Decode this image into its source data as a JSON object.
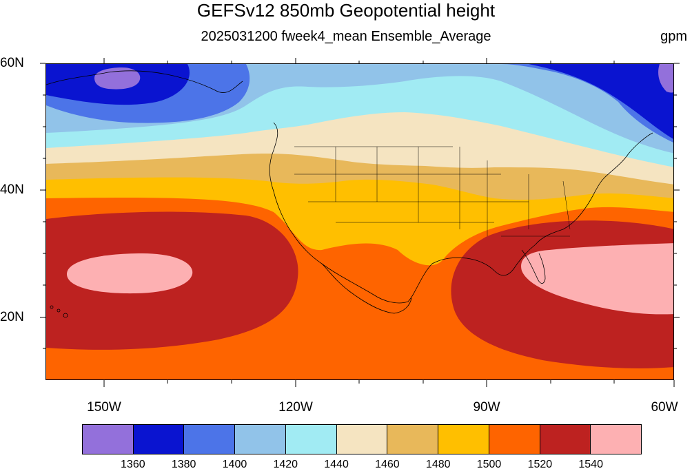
{
  "title": "GEFSv12 850mb Geopotential height",
  "subtitle": "2025031200 fweek4_mean Ensemble_Average",
  "units": "gpm",
  "map": {
    "projection": "cylindrical equidistant",
    "lon_range": [
      "160W",
      "60W"
    ],
    "lat_range": [
      "10N",
      "60N"
    ],
    "lat_labels": [
      "60N",
      "40N",
      "20N"
    ],
    "lon_labels": [
      "150W",
      "120W",
      "90W",
      "60W"
    ]
  },
  "colorbar": {
    "colors": [
      "#9370DB",
      "#0A14D0",
      "#4C74E8",
      "#91C3E9",
      "#A1EBF3",
      "#F5E4C1",
      "#E8B85A",
      "#FFBF00",
      "#FE6400",
      "#BD2220",
      "#FDB0B2"
    ],
    "labels": [
      "1360",
      "1380",
      "1400",
      "1420",
      "1440",
      "1460",
      "1480",
      "1500",
      "1520",
      "1540"
    ]
  },
  "chart_data": {
    "type": "heatmap",
    "variable": "850mb geopotential height",
    "units": "gpm",
    "x_range": [
      -160,
      -60
    ],
    "y_range": [
      10,
      60
    ],
    "contour_levels": [
      1360,
      1380,
      1400,
      1420,
      1440,
      1460,
      1480,
      1500,
      1520,
      1540
    ],
    "features": [
      {
        "name": "low center Gulf of Alaska",
        "lon": -145,
        "lat": 57,
        "value_below": 1360
      },
      {
        "name": "low center Labrador Sea",
        "lon": -61,
        "lat": 57,
        "value_below": 1360
      },
      {
        "name": "high center east Pacific",
        "lon": -146,
        "lat": 27,
        "value_above": 1540
      },
      {
        "name": "high center western Atlantic",
        "lon": -68,
        "lat": 27,
        "value_above": 1540
      }
    ]
  }
}
